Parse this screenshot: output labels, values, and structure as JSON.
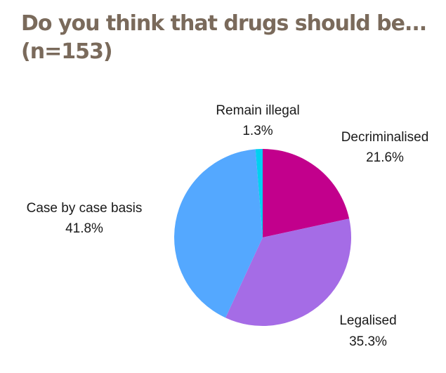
{
  "chart_data": {
    "type": "pie",
    "title_line1": "Do you think that drugs should be...",
    "title_line2": "(n=153)",
    "slices": [
      {
        "label": "Decriminalised",
        "value": 21.6,
        "value_label": "21.6%",
        "color": "#c2008c"
      },
      {
        "label": "Legalised",
        "value": 35.3,
        "value_label": "35.3%",
        "color": "#a56ce6"
      },
      {
        "label": "Case by case basis",
        "value": 41.8,
        "value_label": "41.8%",
        "color": "#54a8ff"
      },
      {
        "label": "Remain illegal",
        "value": 1.3,
        "value_label": "1.3%",
        "color": "#00d0f0"
      }
    ]
  }
}
